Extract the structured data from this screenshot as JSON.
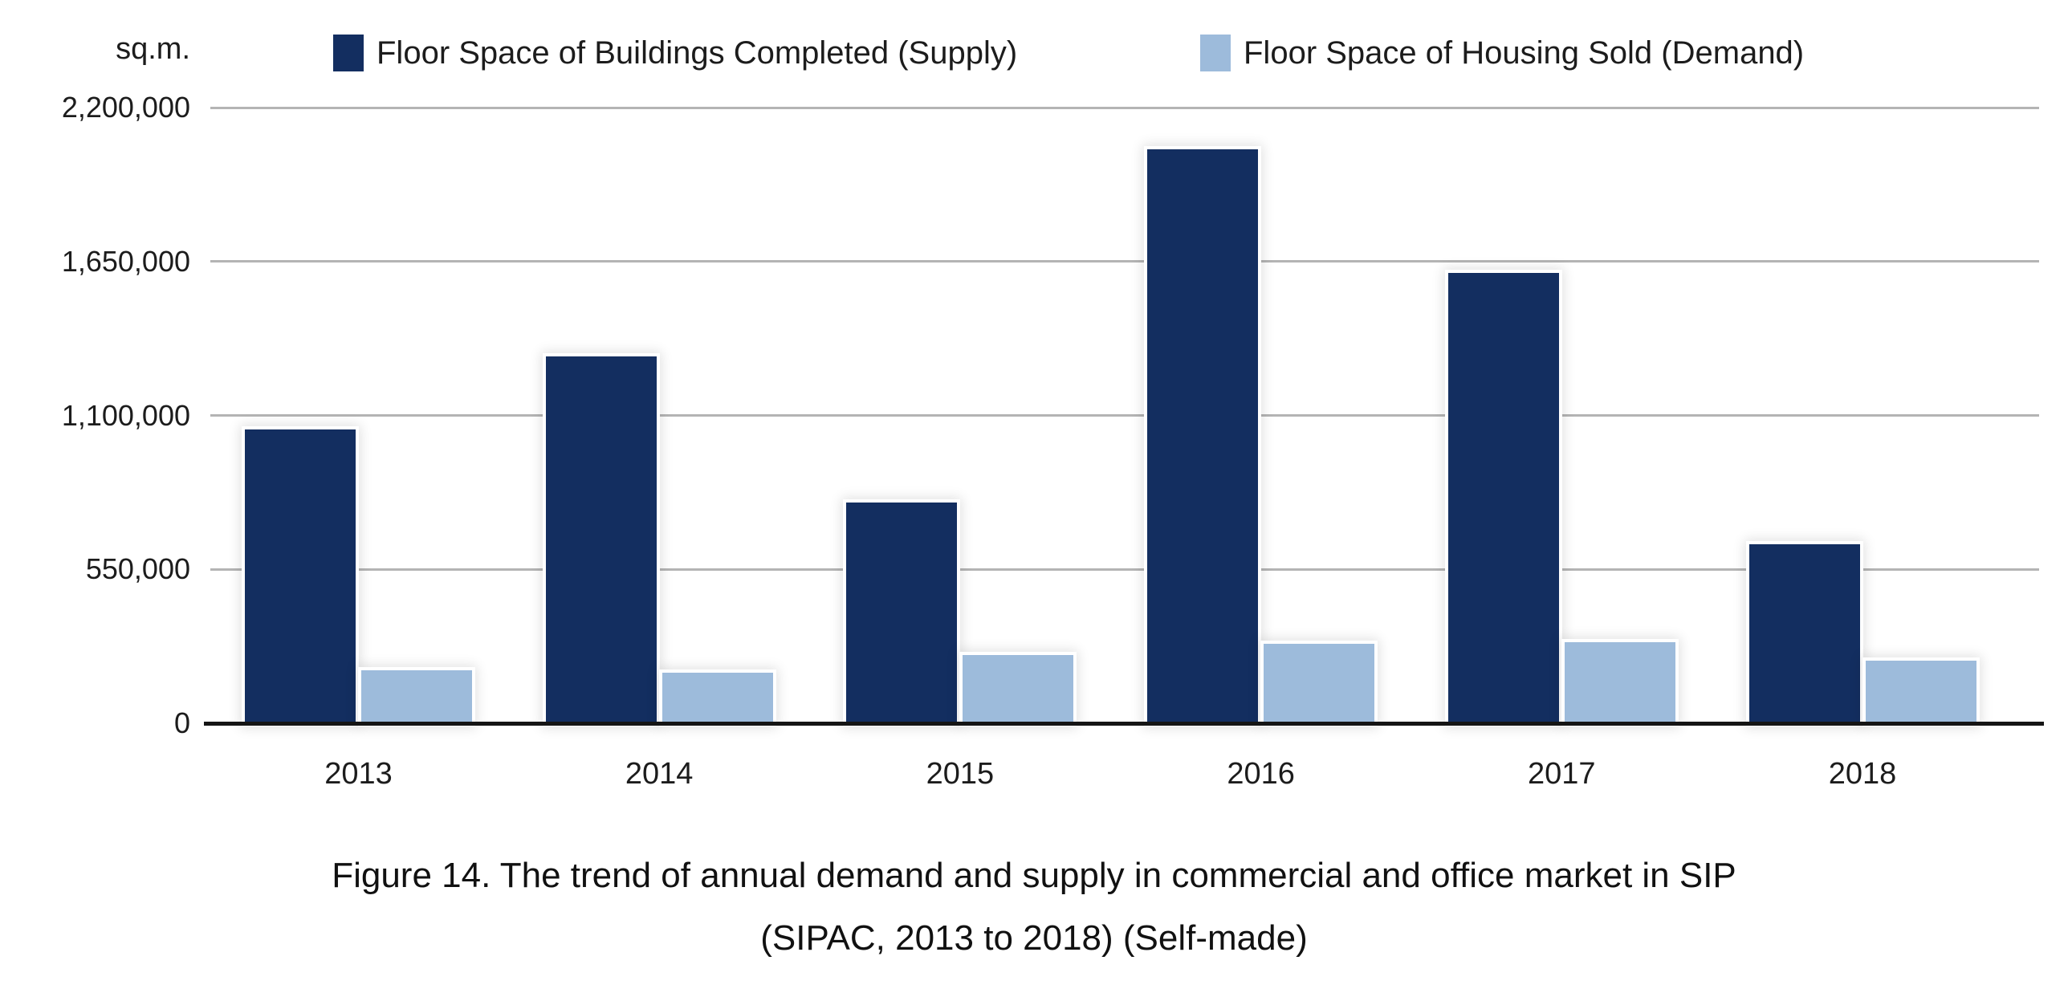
{
  "legend": [
    {
      "label": "Floor Space of Buildings Completed (Supply)",
      "color": "#132e60"
    },
    {
      "label": "Floor Space of Housing Sold (Demand)",
      "color": "#9dbbdb"
    }
  ],
  "caption": {
    "line1": "Figure 14. The trend of annual demand and supply in commercial and office market in SIP",
    "line2": "(SIPAC, 2013 to 2018) (Self-made)"
  },
  "chart_data": {
    "type": "bar",
    "title": "",
    "xlabel": "",
    "ylabel": "sq.m.",
    "categories": [
      "2013",
      "2014",
      "2015",
      "2016",
      "2017",
      "2018"
    ],
    "series": [
      {
        "name": "Floor Space of Buildings Completed (Supply)",
        "color": "#132e60",
        "values": [
          1050000,
          1310000,
          790000,
          2050000,
          1610000,
          640000
        ]
      },
      {
        "name": "Floor Space of Housing Sold (Demand)",
        "color": "#9dbbdb",
        "values": [
          190000,
          180000,
          245000,
          285000,
          290000,
          225000
        ]
      }
    ],
    "ylim": [
      0,
      2200000
    ],
    "yticks": {
      "values": [
        0,
        550000,
        1100000,
        1650000,
        2200000
      ],
      "labels": [
        "0",
        "550,000",
        "1,100,000",
        "1,650,000",
        "2,200,000"
      ]
    },
    "grid": true,
    "legend_position": "top",
    "gridline_color": "#b4b4b4",
    "axis_color": "#151515"
  }
}
